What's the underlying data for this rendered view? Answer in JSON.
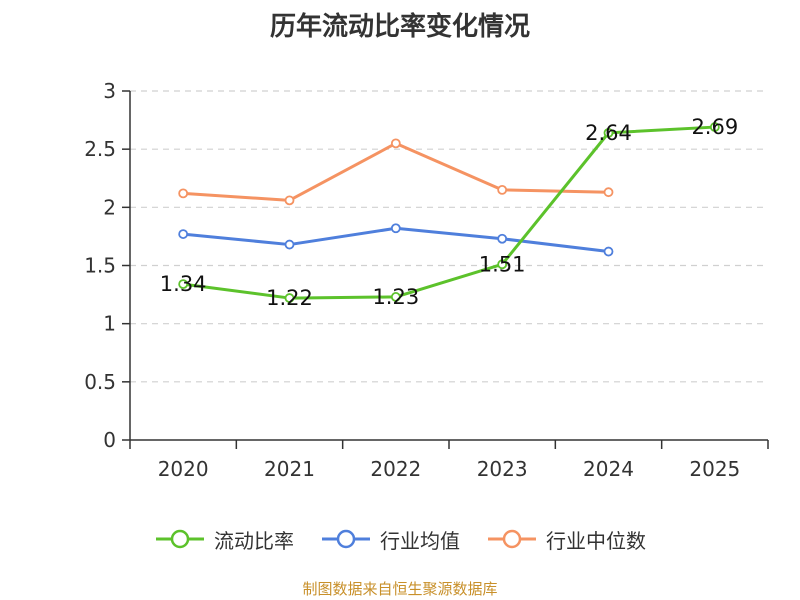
{
  "chart_data": {
    "type": "line",
    "title": "历年流动比率变化情况",
    "categories": [
      "2020",
      "2021",
      "2022",
      "2023",
      "2024",
      "2025"
    ],
    "ylim": [
      0,
      3
    ],
    "yticks": [
      0,
      0.5,
      1,
      1.5,
      2,
      2.5,
      3
    ],
    "ytick_labels": [
      "0",
      "0.5",
      "1",
      "1.5",
      "2",
      "2.5",
      "3"
    ],
    "grid": true,
    "legend_position": "bottom",
    "series": [
      {
        "name": "流动比率",
        "color": "#5cc22b",
        "labels": true,
        "values": [
          1.34,
          1.22,
          1.23,
          1.51,
          2.64,
          2.69
        ],
        "value_labels": [
          "1.34",
          "1.22",
          "1.23",
          "1.51",
          "2.64",
          "2.69"
        ]
      },
      {
        "name": "行业均值",
        "color": "#4f7fdc",
        "labels": false,
        "values": [
          1.77,
          1.68,
          1.82,
          1.73,
          1.62,
          null
        ]
      },
      {
        "name": "行业中位数",
        "color": "#f59362",
        "labels": false,
        "values": [
          2.12,
          2.06,
          2.55,
          2.15,
          2.13,
          null
        ]
      }
    ],
    "source": "制图数据来自恒生聚源数据库",
    "source_color": "#c8902a"
  }
}
